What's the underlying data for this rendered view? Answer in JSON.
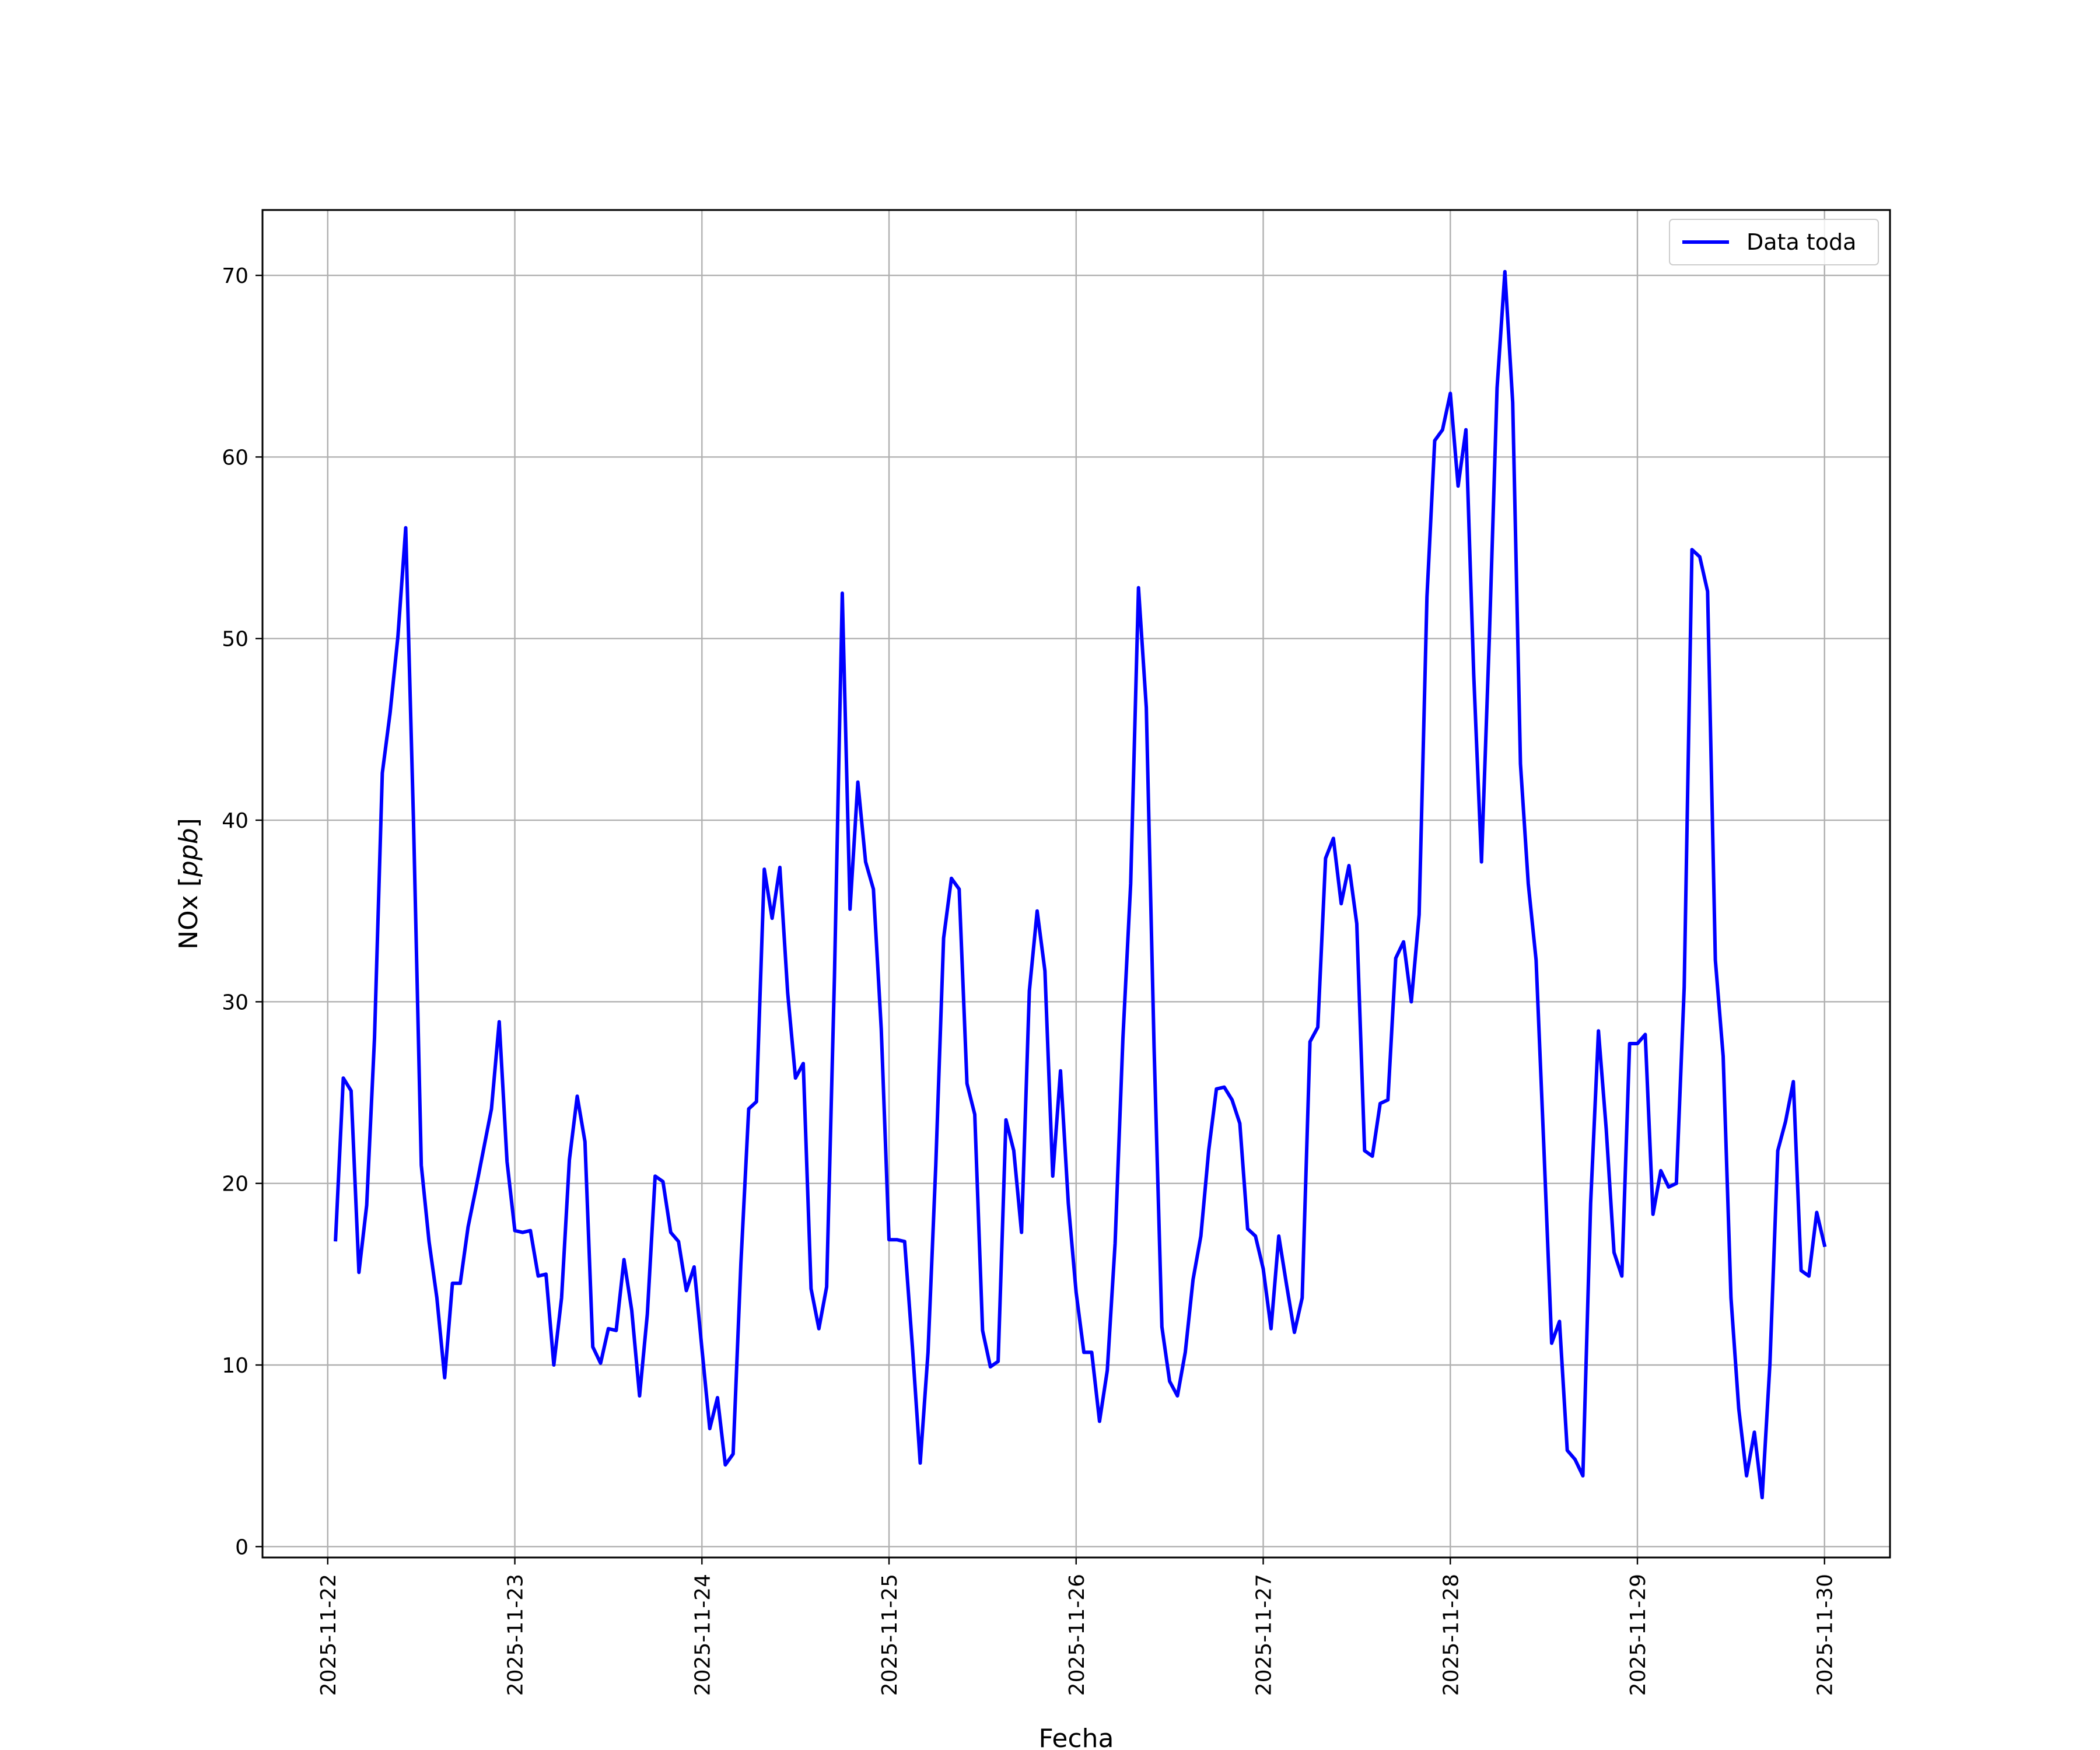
{
  "chart_data": {
    "type": "line",
    "xlabel": "Fecha",
    "ylabel_main": "NOx",
    "ylabel_unit": "ppb",
    "xlim": [
      "2025-11-21 15:38",
      "2025-11-30 08:24"
    ],
    "ylim": [
      -0.6,
      73.6
    ],
    "x_ticks": [
      "2025-11-22",
      "2025-11-23",
      "2025-11-24",
      "2025-11-25",
      "2025-11-26",
      "2025-11-27",
      "2025-11-28",
      "2025-11-29",
      "2025-11-30"
    ],
    "y_ticks": [
      0,
      10,
      20,
      30,
      40,
      50,
      60,
      70
    ],
    "grid": true,
    "legend_position": "top-right",
    "series": [
      {
        "name": "Data toda",
        "color": "#0000ff",
        "x_start": "2025-11-22 01:00",
        "x_step_hours": 1,
        "values": [
          16.9,
          25.8,
          25.1,
          15.1,
          18.8,
          28.0,
          42.6,
          45.9,
          50.1,
          56.1,
          40.0,
          21.0,
          16.8,
          13.7,
          9.3,
          14.5,
          14.5,
          17.6,
          19.7,
          21.9,
          24.1,
          28.9,
          21.2,
          17.4,
          17.3,
          17.4,
          14.9,
          15.0,
          10.0,
          13.7,
          21.3,
          24.8,
          22.3,
          11.0,
          10.1,
          12.0,
          11.9,
          15.8,
          13.0,
          8.3,
          12.8,
          20.4,
          20.1,
          17.3,
          16.8,
          14.1,
          15.4,
          10.9,
          6.5,
          8.2,
          4.5,
          5.1,
          15.6,
          24.1,
          24.5,
          37.3,
          34.6,
          37.4,
          30.5,
          25.8,
          26.6,
          14.2,
          12.0,
          14.3,
          31.4,
          52.5,
          35.1,
          42.1,
          37.7,
          36.2,
          28.5,
          16.9,
          16.9,
          16.8,
          11.0,
          4.6,
          10.7,
          21.0,
          33.5,
          36.8,
          36.2,
          25.5,
          23.8,
          11.9,
          9.9,
          10.2,
          23.5,
          21.8,
          17.3,
          30.6,
          35.0,
          31.7,
          20.4,
          26.2,
          18.9,
          14.0,
          10.7,
          10.7,
          6.9,
          9.7,
          16.7,
          28.0,
          36.5,
          52.8,
          46.2,
          27.5,
          12.1,
          9.1,
          8.3,
          10.7,
          14.7,
          17.1,
          21.8,
          25.2,
          25.3,
          24.6,
          23.3,
          17.5,
          17.1,
          15.3,
          12.0,
          17.1,
          14.4,
          11.8,
          13.7,
          27.8,
          28.6,
          37.9,
          39.0,
          35.4,
          37.5,
          34.3,
          21.8,
          21.5,
          24.4,
          24.6,
          32.4,
          33.3,
          30.0,
          34.8,
          52.3,
          60.9,
          61.5,
          63.5,
          58.4,
          61.5,
          48.0,
          37.7,
          50.0,
          63.8,
          70.2,
          63.0,
          43.1,
          36.5,
          32.3,
          22.0,
          11.2,
          12.4,
          5.3,
          4.8,
          3.9,
          18.9,
          28.4,
          23.0,
          16.2,
          14.9,
          27.7,
          27.7,
          28.2,
          18.3,
          20.7,
          19.8,
          20.0,
          30.8,
          54.9,
          54.5,
          52.6,
          32.3,
          27.0,
          13.7,
          7.6,
          3.9,
          6.3,
          2.7,
          10.1,
          21.8,
          23.4,
          25.6,
          15.2,
          14.9,
          18.4,
          16.6
        ]
      }
    ]
  }
}
